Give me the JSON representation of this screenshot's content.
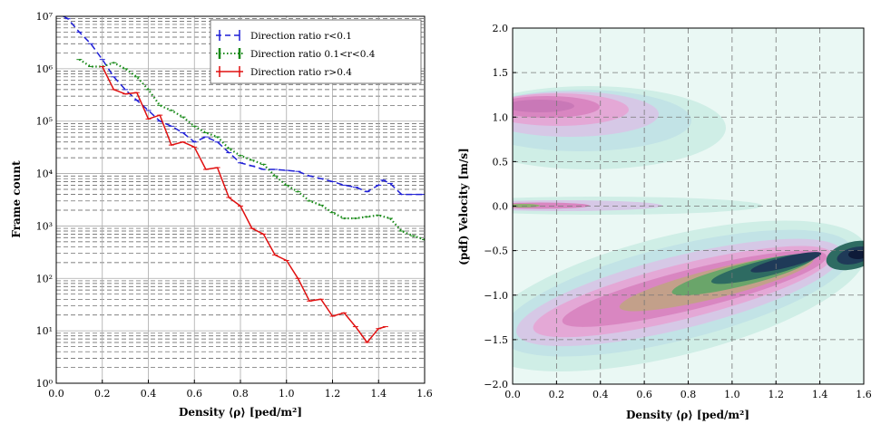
{
  "chart_data": [
    {
      "type": "line",
      "title": "",
      "xlabel": "Density ⟨ρ⟩ [ped/m²]",
      "ylabel": "Frame count",
      "xlim": [
        0.0,
        1.6
      ],
      "ylim": [
        1,
        10000000
      ],
      "yscale": "log",
      "grid": true,
      "legend_position": "top-right",
      "xticks": [
        "0.0",
        "0.2",
        "0.4",
        "0.6",
        "0.8",
        "1.0",
        "1.2",
        "1.4",
        "1.6"
      ],
      "yticks": [
        "10⁰",
        "10¹",
        "10²",
        "10³",
        "10⁴",
        "10⁵",
        "10⁶",
        "10⁷"
      ],
      "series": [
        {
          "name": "Direction ratio r<0.1",
          "color": "#1f1fd6",
          "style": "dashed",
          "x": [
            0.03,
            0.05,
            0.1,
            0.15,
            0.2,
            0.25,
            0.3,
            0.35,
            0.4,
            0.45,
            0.5,
            0.55,
            0.6,
            0.65,
            0.7,
            0.75,
            0.8,
            0.85,
            0.9,
            0.95,
            1.0,
            1.05,
            1.1,
            1.15,
            1.2,
            1.25,
            1.3,
            1.35,
            1.4,
            1.42,
            1.45,
            1.5,
            1.55,
            1.6
          ],
          "y": [
            10000000,
            9000000,
            5000000,
            3000000,
            1500000,
            700000,
            400000,
            250000,
            160000,
            100000,
            80000,
            60000,
            40000,
            50000,
            40000,
            25000,
            16000,
            14000,
            12000,
            12000,
            11500,
            11000,
            9000,
            8000,
            7000,
            6000,
            5500,
            4500,
            6000,
            7500,
            6500,
            4000,
            4000,
            4000
          ]
        },
        {
          "name": "Direction ratio 0.1<r<0.4",
          "color": "#1a8a1a",
          "style": "dotted",
          "x": [
            0.1,
            0.15,
            0.2,
            0.25,
            0.3,
            0.35,
            0.4,
            0.45,
            0.5,
            0.55,
            0.6,
            0.65,
            0.7,
            0.75,
            0.8,
            0.85,
            0.9,
            0.95,
            1.0,
            1.05,
            1.1,
            1.15,
            1.2,
            1.25,
            1.3,
            1.35,
            1.4,
            1.45,
            1.5,
            1.55,
            1.6
          ],
          "y": [
            1500000,
            1100000,
            1100000,
            1300000,
            1000000,
            700000,
            400000,
            200000,
            160000,
            120000,
            80000,
            60000,
            50000,
            30000,
            22000,
            18000,
            15000,
            9000,
            6000,
            4500,
            3000,
            2500,
            1800,
            1400,
            1400,
            1500,
            1600,
            1400,
            800,
            650,
            550
          ]
        },
        {
          "name": "Direction ratio r>0.4",
          "color": "#e01010",
          "style": "solid",
          "x": [
            0.2,
            0.25,
            0.3,
            0.35,
            0.4,
            0.45,
            0.5,
            0.55,
            0.6,
            0.65,
            0.7,
            0.75,
            0.8,
            0.85,
            0.9,
            0.95,
            1.0,
            1.05,
            1.1,
            1.15,
            1.2,
            1.25,
            1.3,
            1.35,
            1.4,
            1.43
          ],
          "y": [
            1100000,
            400000,
            330000,
            350000,
            110000,
            130000,
            35000,
            40000,
            32000,
            12000,
            13000,
            3500,
            2400,
            900,
            700,
            280,
            220,
            100,
            37,
            40,
            19,
            22,
            12,
            6,
            11,
            12
          ]
        }
      ]
    },
    {
      "type": "heatmap",
      "title": "",
      "xlabel": "Density ⟨ρ⟩ [ped/m²]",
      "ylabel": "(pdf) Velocity [m/s]",
      "xlim": [
        0.0,
        1.6
      ],
      "ylim": [
        -2.0,
        2.0
      ],
      "grid": true,
      "xticks": [
        "0.0",
        "0.2",
        "0.4",
        "0.6",
        "0.8",
        "1.0",
        "1.2",
        "1.4",
        "1.6"
      ],
      "yticks": [
        "−2.0",
        "−1.5",
        "−1.0",
        "−0.5",
        "0.0",
        "0.5",
        "1.0",
        "1.5",
        "2.0"
      ],
      "colormap": "cubehelix-light (mint → pink → green → navy)",
      "density_features": [
        {
          "center_density": 0.15,
          "center_velocity": 1.1,
          "level": "medium"
        },
        {
          "center_density": 0.05,
          "center_velocity": 0.0,
          "level": "medium"
        },
        {
          "center_density": 0.25,
          "center_velocity": -1.1,
          "level": "medium"
        },
        {
          "center_density": 1.1,
          "center_velocity": -0.85,
          "level": "high"
        },
        {
          "center_density": 1.5,
          "center_velocity": -0.6,
          "level": "peak"
        }
      ]
    }
  ]
}
